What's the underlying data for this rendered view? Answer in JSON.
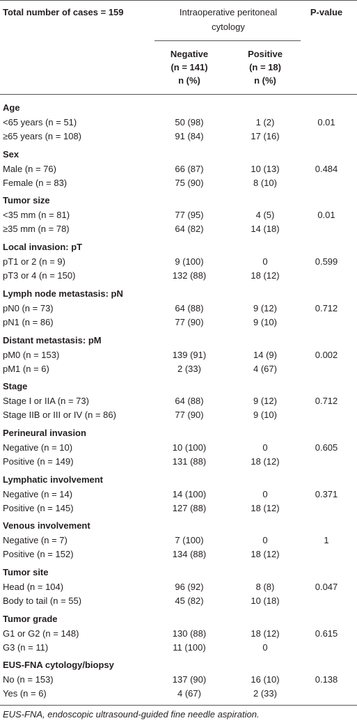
{
  "header": {
    "title": "Total number of cases = 159",
    "column_group": [
      "Intraoperative peritoneal",
      "cytology"
    ],
    "subcolumns": [
      [
        "Negative",
        "(n = 141)",
        "n (%)"
      ],
      [
        "Positive",
        "(n = 18)",
        "n (%)"
      ]
    ],
    "p_value": "P-value"
  },
  "groups": [
    {
      "name": "Age",
      "p_value": "0.01",
      "rows": [
        [
          "<65 years (n = 51)",
          "50 (98)",
          "1 (2)"
        ],
        [
          "≥65 years (n = 108)",
          "91 (84)",
          "17 (16)"
        ]
      ]
    },
    {
      "name": "Sex",
      "p_value": "0.484",
      "rows": [
        [
          "Male (n = 76)",
          "66 (87)",
          "10 (13)"
        ],
        [
          "Female (n = 83)",
          "75 (90)",
          "8 (10)"
        ]
      ]
    },
    {
      "name": "Tumor size",
      "p_value": "0.01",
      "rows": [
        [
          "<35 mm (n = 81)",
          "77 (95)",
          "4 (5)"
        ],
        [
          "≥35 mm (n = 78)",
          "64 (82)",
          "14 (18)"
        ]
      ]
    },
    {
      "name": "Local invasion: pT",
      "p_value": "0.599",
      "rows": [
        [
          "pT1 or 2 (n = 9)",
          "9 (100)",
          "0"
        ],
        [
          "pT3 or 4 (n = 150)",
          "132 (88)",
          "18 (12)"
        ]
      ]
    },
    {
      "name": "Lymph node metastasis: pN",
      "p_value": "0.712",
      "rows": [
        [
          "pN0 (n = 73)",
          "64 (88)",
          "9 (12)"
        ],
        [
          "pN1 (n = 86)",
          "77 (90)",
          "9 (10)"
        ]
      ]
    },
    {
      "name": "Distant metastasis: pM",
      "p_value": "0.002",
      "rows": [
        [
          "pM0 (n = 153)",
          "139 (91)",
          "14 (9)"
        ],
        [
          "pM1 (n = 6)",
          "2 (33)",
          "4 (67)"
        ]
      ]
    },
    {
      "name": "Stage",
      "p_value": "0.712",
      "rows": [
        [
          "Stage I or IIA (n = 73)",
          "64 (88)",
          "9 (12)"
        ],
        [
          "Stage IIB or III or IV (n = 86)",
          "77 (90)",
          "9 (10)"
        ]
      ]
    },
    {
      "name": "Perineural invasion",
      "p_value": "0.605",
      "rows": [
        [
          "Negative (n = 10)",
          "10 (100)",
          "0"
        ],
        [
          "Positive (n = 149)",
          "131 (88)",
          "18 (12)"
        ]
      ]
    },
    {
      "name": "Lymphatic involvement",
      "p_value": "0.371",
      "rows": [
        [
          "Negative (n = 14)",
          "14 (100)",
          "0"
        ],
        [
          "Positive (n = 145)",
          "127 (88)",
          "18 (12)"
        ]
      ]
    },
    {
      "name": "Venous involvement",
      "p_value": "1",
      "rows": [
        [
          "Negative (n = 7)",
          "7 (100)",
          "0"
        ],
        [
          "Positive (n = 152)",
          "134 (88)",
          "18 (12)"
        ]
      ]
    },
    {
      "name": "Tumor site",
      "p_value": "0.047",
      "rows": [
        [
          "Head (n = 104)",
          "96 (92)",
          "8 (8)"
        ],
        [
          "Body to tail (n = 55)",
          "45 (82)",
          "10 (18)"
        ]
      ]
    },
    {
      "name": "Tumor grade",
      "p_value": "0.615",
      "rows": [
        [
          "G1 or G2 (n = 148)",
          "130 (88)",
          "18 (12)"
        ],
        [
          "G3 (n = 11)",
          "11 (100)",
          "0"
        ]
      ]
    },
    {
      "name": "EUS-FNA cytology/biopsy",
      "p_value": "0.138",
      "rows": [
        [
          "No (n = 153)",
          "137 (90)",
          "16 (10)"
        ],
        [
          "Yes (n = 6)",
          "4 (67)",
          "2 (33)"
        ]
      ]
    }
  ],
  "footnote": "EUS-FNA, endoscopic ultrasound-guided fine needle aspiration."
}
